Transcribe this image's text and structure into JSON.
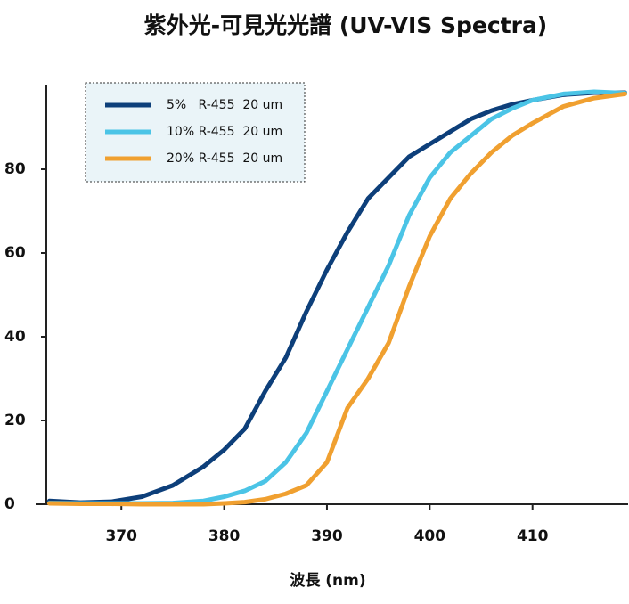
{
  "chart_data": {
    "type": "line",
    "title": "紫外光-可見光光譜 (UV-VIS Spectra)",
    "x_label": "波長 (nm)",
    "x": [
      363,
      366,
      369,
      372,
      375,
      378,
      380,
      382,
      384,
      386,
      388,
      390,
      392,
      394,
      396,
      398,
      400,
      402,
      404,
      406,
      408,
      410,
      413,
      416,
      419
    ],
    "series": [
      {
        "name": "5%   R-455  20 um",
        "color": "#0d3f7a",
        "values": [
          0.8,
          0.4,
          0.6,
          1.8,
          4.5,
          9,
          13,
          18,
          27,
          35,
          46,
          56,
          65,
          73,
          78,
          83,
          86,
          89,
          92,
          94,
          95.5,
          96.5,
          97.8,
          98.3,
          98.3
        ]
      },
      {
        "name": "10% R-455  20 um",
        "color": "#4bc4e6",
        "values": [
          0.3,
          0.2,
          0.2,
          0.2,
          0.3,
          0.8,
          1.8,
          3.2,
          5.5,
          10,
          17,
          27,
          37,
          47,
          57,
          69,
          78,
          84,
          88,
          92,
          94.5,
          96.5,
          98,
          98.5,
          98.2
        ]
      },
      {
        "name": "20% R-455  20 um",
        "color": "#f0a030",
        "values": [
          0.2,
          0.1,
          0.1,
          0,
          0,
          0,
          0.2,
          0.5,
          1.2,
          2.5,
          4.5,
          10,
          23,
          30,
          38.5,
          52,
          64,
          73,
          79,
          84,
          88,
          91,
          95,
          97,
          98
        ]
      }
    ],
    "xlim": [
      362.7,
      419.3
    ],
    "xticks": [
      370,
      380,
      390,
      400,
      410
    ],
    "ylim": [
      0,
      100
    ],
    "yticks": [
      0,
      20,
      40,
      60,
      80
    ],
    "legend": "upper left"
  }
}
